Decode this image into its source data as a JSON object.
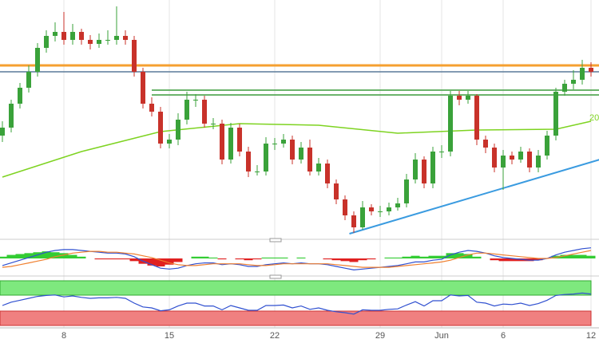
{
  "chart_data": {
    "type": "candlestick",
    "categories": [
      null,
      null,
      null,
      null,
      null,
      null,
      null,
      "8",
      null,
      null,
      null,
      null,
      null,
      null,
      null,
      null,
      null,
      null,
      null,
      "15",
      null,
      null,
      null,
      null,
      null,
      null,
      null,
      null,
      null,
      null,
      null,
      "22",
      null,
      null,
      null,
      null,
      null,
      null,
      null,
      null,
      null,
      null,
      null,
      "29",
      null,
      null,
      null,
      null,
      null,
      null,
      "Jun",
      null,
      null,
      null,
      null,
      null,
      null,
      "6",
      null,
      null,
      null,
      null,
      null,
      null,
      null,
      null,
      null,
      "12"
    ],
    "open": [
      130,
      140,
      170,
      190,
      210,
      240,
      255,
      260,
      250,
      260,
      250,
      245,
      250,
      250,
      255,
      250,
      210,
      170,
      160,
      120,
      125,
      150,
      175,
      175,
      145,
      145,
      100,
      140,
      110,
      85,
      85,
      120,
      120,
      125,
      100,
      115,
      85,
      95,
      70,
      50,
      30,
      15,
      40,
      35,
      35,
      40,
      45,
      75,
      100,
      70,
      110,
      110,
      180,
      175,
      180,
      125,
      115,
      90,
      105,
      100,
      110,
      90,
      105,
      130,
      185,
      195,
      200,
      215
    ],
    "high": [
      148,
      175,
      196,
      218,
      246,
      262,
      272,
      285,
      270,
      264,
      256,
      258,
      262,
      292,
      262,
      255,
      215,
      178,
      166,
      132,
      158,
      185,
      182,
      180,
      152,
      150,
      146,
      145,
      116,
      93,
      128,
      127,
      132,
      130,
      122,
      125,
      102,
      100,
      75,
      55,
      35,
      48,
      44,
      42,
      46,
      52,
      82,
      108,
      104,
      116,
      118,
      186,
      186,
      186,
      182,
      130,
      120,
      112,
      110,
      116,
      114,
      112,
      136,
      190,
      200,
      212,
      225,
      222
    ],
    "low": [
      122,
      134,
      164,
      184,
      204,
      234,
      248,
      244,
      244,
      244,
      238,
      240,
      244,
      244,
      244,
      204,
      164,
      154,
      114,
      114,
      118,
      144,
      166,
      140,
      138,
      94,
      95,
      104,
      78,
      80,
      80,
      112,
      115,
      94,
      95,
      80,
      80,
      64,
      44,
      24,
      8,
      12,
      30,
      28,
      30,
      36,
      40,
      70,
      64,
      64,
      102,
      104,
      168,
      170,
      118,
      108,
      84,
      62,
      94,
      96,
      84,
      84,
      100,
      124,
      180,
      188,
      194,
      204
    ],
    "close": [
      140,
      170,
      190,
      210,
      240,
      255,
      260,
      250,
      260,
      250,
      245,
      250,
      250,
      255,
      250,
      210,
      170,
      160,
      120,
      125,
      150,
      175,
      175,
      145,
      145,
      100,
      140,
      110,
      85,
      85,
      120,
      120,
      125,
      100,
      115,
      85,
      95,
      70,
      50,
      30,
      15,
      40,
      35,
      35,
      40,
      45,
      75,
      100,
      70,
      110,
      110,
      180,
      175,
      180,
      125,
      115,
      90,
      105,
      100,
      110,
      90,
      105,
      130,
      185,
      195,
      200,
      215,
      210
    ],
    "up_color": "#3aa23a",
    "down_color": "#c8322a",
    "ylim": [
      0,
      300
    ],
    "levels": [
      {
        "value": 218,
        "color": "#f5a030"
      },
      {
        "value": 210,
        "color": "#5a7a9a"
      },
      {
        "value": 187,
        "color": "#3c9c3c",
        "from": 17
      },
      {
        "value": 181,
        "color": "#3c9c3c",
        "from": 17
      }
    ],
    "sma": {
      "x": [
        0,
        9,
        18,
        27,
        36,
        45,
        54,
        63,
        67
      ],
      "values": [
        78,
        110,
        135,
        145,
        143,
        133,
        137,
        138,
        148
      ],
      "color": "#7ed321",
      "label": "20"
    },
    "trendline": {
      "x": [
        39.5,
        68
      ],
      "values": [
        7,
        100
      ],
      "color": "#3a9be0"
    },
    "macd": {
      "ylim": [
        -18,
        18
      ],
      "macd": [
        -8,
        -5,
        -2,
        1,
        4,
        7,
        9,
        10,
        10,
        9,
        8,
        7,
        6,
        6,
        5,
        2,
        -3,
        -7,
        -11,
        -12,
        -11,
        -8,
        -6,
        -5,
        -5,
        -7,
        -6,
        -7,
        -9,
        -9,
        -7,
        -6,
        -5,
        -6,
        -5,
        -6,
        -6,
        -7,
        -9,
        -11,
        -13,
        -12,
        -11,
        -10,
        -9,
        -8,
        -6,
        -4,
        -4,
        -2,
        -1,
        4,
        7,
        9,
        8,
        6,
        3,
        1,
        0,
        -1,
        -2,
        -2,
        0,
        4,
        7,
        9,
        11,
        12
      ],
      "signal": [
        -10,
        -9,
        -7,
        -5,
        -3,
        -1,
        2,
        4,
        6,
        7,
        8,
        8,
        7,
        7,
        6,
        5,
        3,
        1,
        -2,
        -5,
        -7,
        -8,
        -8,
        -7,
        -6,
        -6,
        -6,
        -6,
        -7,
        -8,
        -8,
        -7,
        -6,
        -6,
        -6,
        -6,
        -6,
        -6,
        -7,
        -8,
        -9,
        -10,
        -10,
        -10,
        -10,
        -9,
        -8,
        -7,
        -6,
        -5,
        -4,
        -2,
        1,
        4,
        6,
        6,
        5,
        4,
        3,
        2,
        1,
        0,
        0,
        1,
        3,
        5,
        7,
        9
      ],
      "histogram": [
        2,
        4,
        5,
        6,
        7,
        8,
        7,
        6,
        4,
        2,
        0,
        -1,
        -1,
        -1,
        -1,
        -3,
        -6,
        -8,
        -9,
        -7,
        -4,
        0,
        2,
        2,
        1,
        -1,
        0,
        -1,
        -2,
        -1,
        1,
        1,
        1,
        0,
        1,
        0,
        0,
        -1,
        -2,
        -3,
        -4,
        -2,
        -1,
        0,
        1,
        1,
        2,
        3,
        2,
        3,
        3,
        6,
        6,
        5,
        2,
        0,
        -2,
        -3,
        -3,
        -3,
        -3,
        -2,
        0,
        3,
        4,
        4,
        4,
        3
      ],
      "macd_color": "#3050d0",
      "signal_color": "#f08030",
      "up_color": "#33cc33",
      "down_color": "#e02020"
    },
    "rsi": {
      "ylim": [
        0,
        100
      ],
      "values": [
        45,
        52,
        56,
        60,
        64,
        66,
        67,
        63,
        65,
        62,
        60,
        61,
        61,
        62,
        60,
        50,
        42,
        40,
        34,
        36,
        44,
        50,
        50,
        44,
        44,
        36,
        45,
        40,
        35,
        35,
        45,
        45,
        46,
        40,
        44,
        37,
        40,
        35,
        32,
        30,
        27,
        36,
        35,
        35,
        37,
        38,
        46,
        53,
        44,
        55,
        55,
        67,
        65,
        66,
        52,
        50,
        44,
        48,
        47,
        50,
        45,
        49,
        56,
        66,
        68,
        69,
        71,
        69
      ],
      "color": "#3050d0"
    }
  }
}
